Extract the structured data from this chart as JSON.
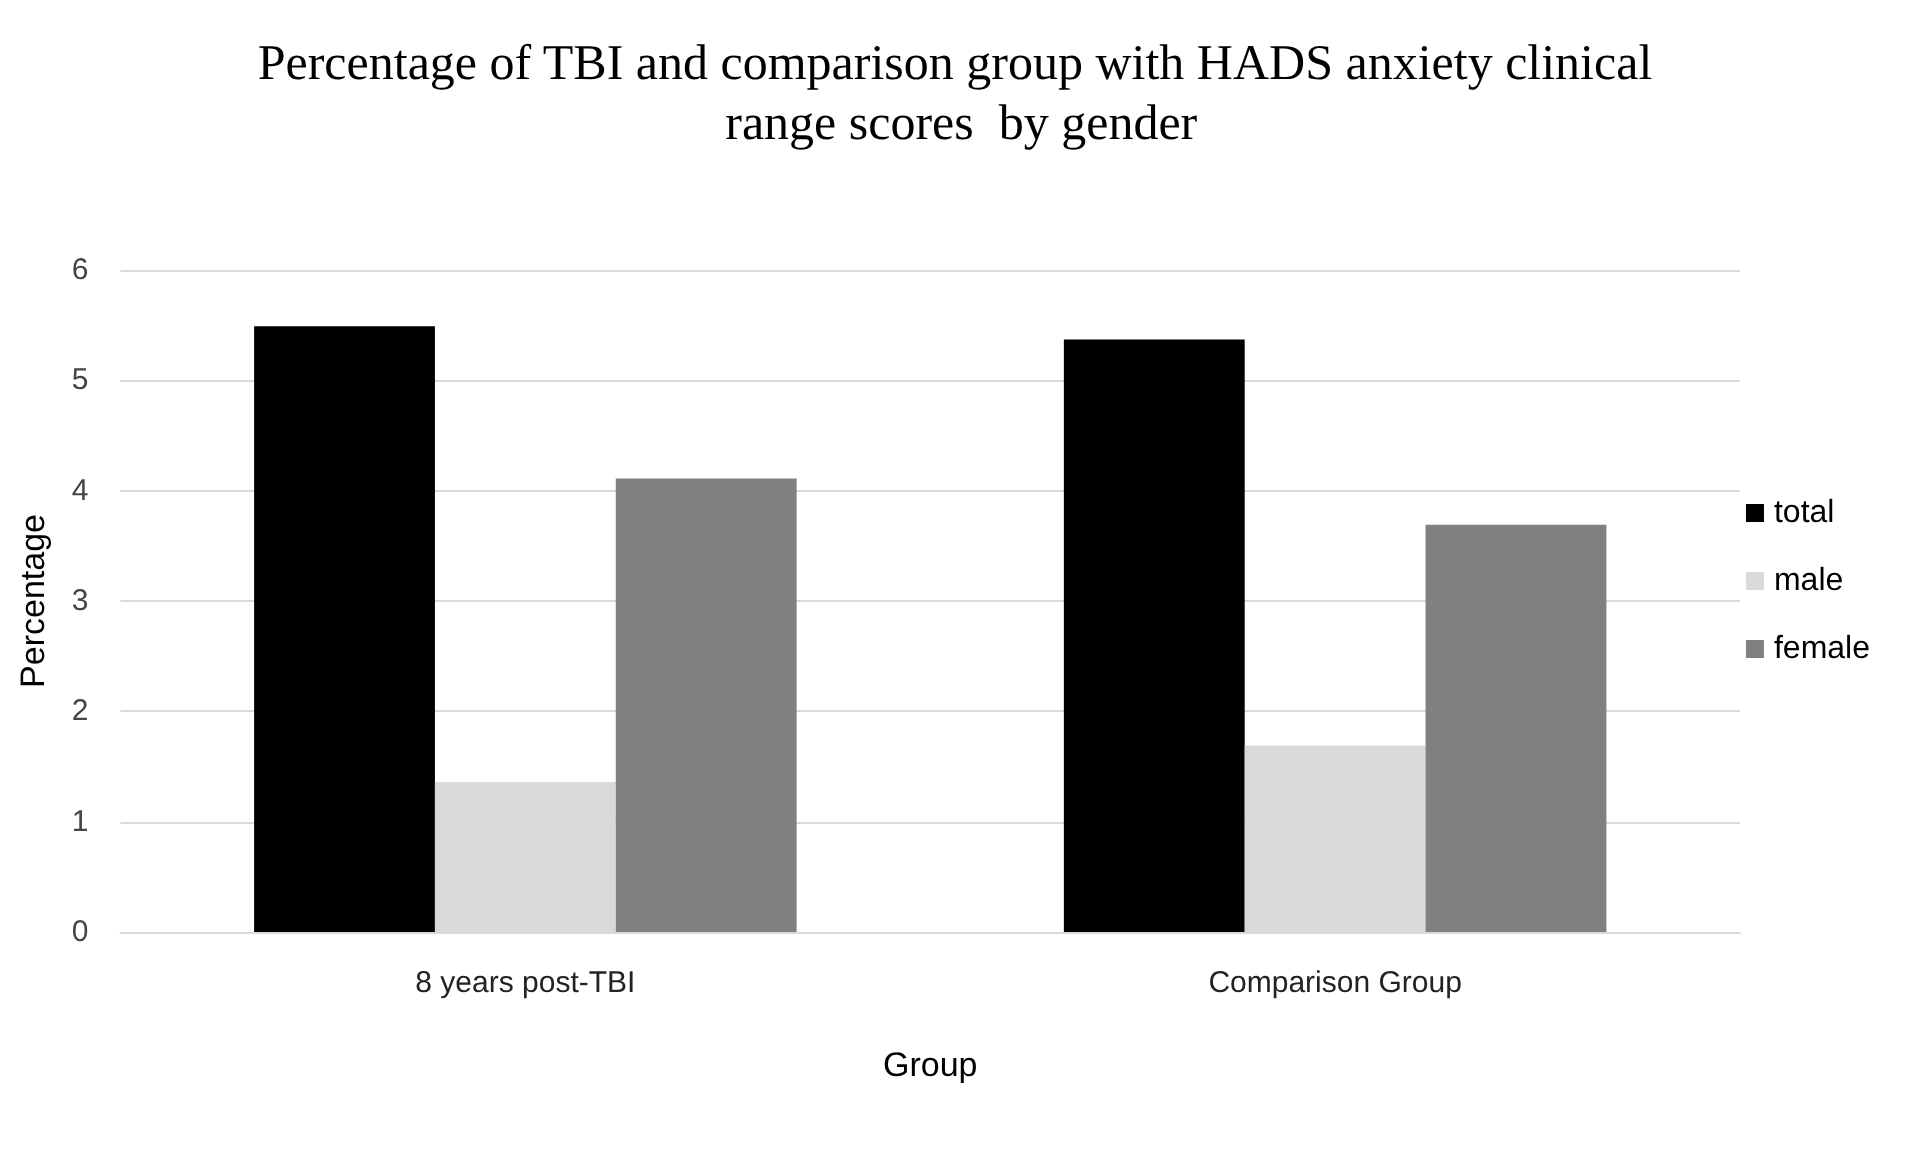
{
  "chart_data": {
    "type": "bar",
    "title": "Percentage of TBI and comparison group with HADS anxiety clinical range scores  by gender",
    "xlabel": "Group",
    "ylabel": "Percentage",
    "categories": [
      "8 years post-TBI",
      "Comparison Group"
    ],
    "series": [
      {
        "name": "total",
        "color": "#000000",
        "values": [
          5.49,
          5.37
        ]
      },
      {
        "name": "male",
        "color": "#d9d9d9",
        "values": [
          1.36,
          1.69
        ]
      },
      {
        "name": "female",
        "color": "#808080",
        "values": [
          4.11,
          3.69
        ]
      }
    ],
    "ylim": [
      0,
      6
    ],
    "yticks": [
      0,
      1,
      2,
      3,
      4,
      5,
      6
    ],
    "grid": "y",
    "legend": "right"
  }
}
